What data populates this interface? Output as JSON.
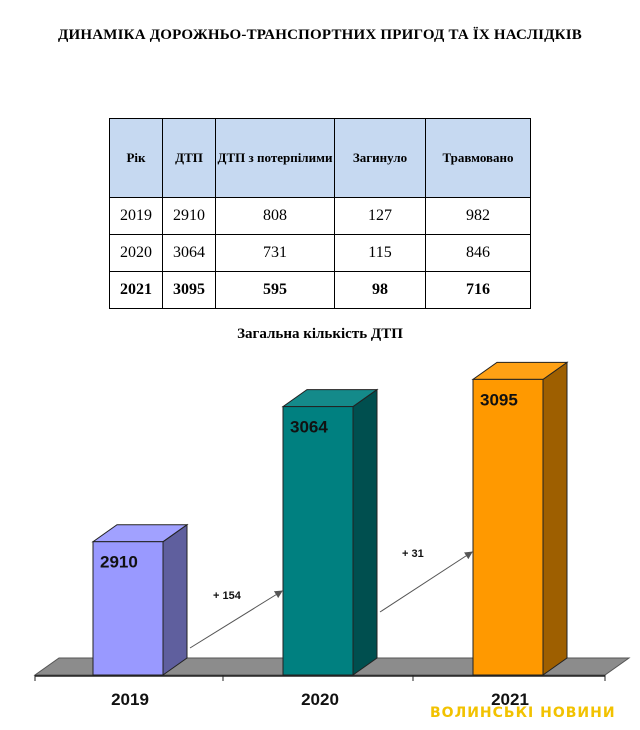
{
  "title": "ДИНАМІКА ДОРОЖНЬО-ТРАНСПОРТНИХ ПРИГОД ТА ЇХ НАСЛІДКІВ",
  "table": {
    "headers": [
      "Рік",
      "ДТП",
      "ДТП з потерпілими",
      "Загинуло",
      "Травмовано"
    ],
    "rows": [
      [
        "2019",
        "2910",
        "808",
        "127",
        "982"
      ],
      [
        "2020",
        "3064",
        "731",
        "115",
        "846"
      ],
      [
        "2021",
        "3095",
        "595",
        "98",
        "716"
      ]
    ]
  },
  "chart_data": {
    "type": "bar",
    "title": "Загальна кількість ДТП",
    "categories": [
      "2019",
      "2020",
      "2021"
    ],
    "values": [
      2910,
      3064,
      3095
    ],
    "value_labels": [
      "2910",
      "3064",
      "3095"
    ],
    "annotations": [
      "+ 154",
      "+ 31"
    ],
    "colors": [
      "#9999ff",
      "#008080",
      "#ff9900"
    ],
    "grid": false,
    "legend": "none"
  },
  "watermark": "ВОЛИНСЬКІ НОВИНИ"
}
